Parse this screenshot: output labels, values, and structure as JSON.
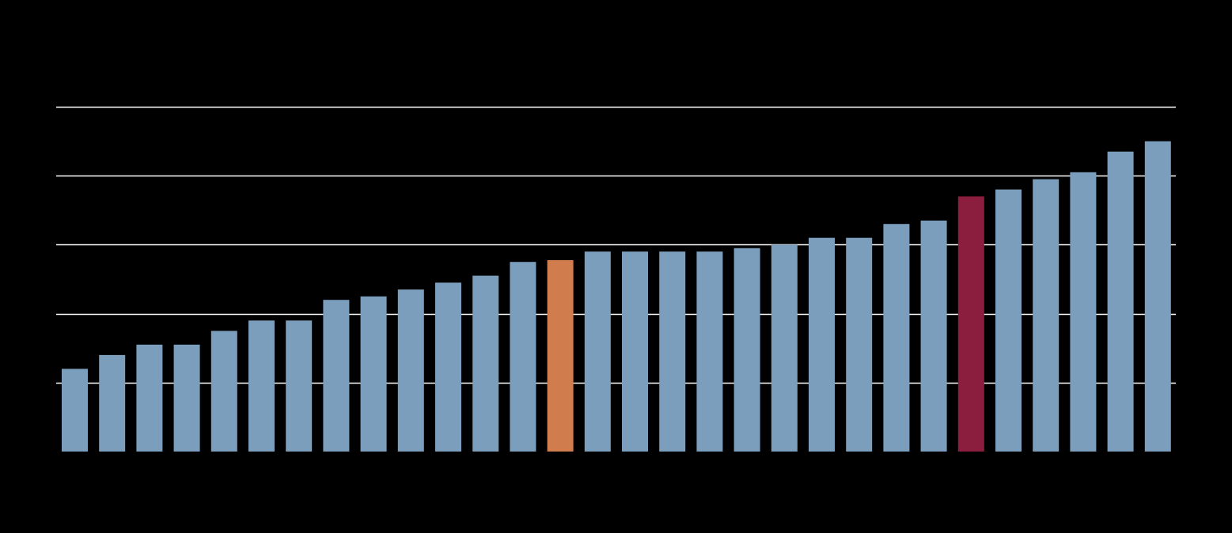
{
  "chart_data": {
    "type": "bar",
    "title": "",
    "xlabel": "",
    "ylabel": "",
    "ylim": [
      0,
      100
    ],
    "grid": true,
    "legend": "none",
    "values": [
      24,
      28,
      31,
      31,
      35,
      38,
      38,
      44,
      45,
      47,
      49,
      51,
      55,
      55.5,
      58,
      58,
      58,
      58,
      59,
      60,
      62,
      62,
      66,
      67,
      74,
      76,
      79,
      81,
      87,
      90
    ],
    "highlights": [
      {
        "index": 13,
        "color": "#d17c4c"
      },
      {
        "index": 24,
        "color": "#8b1d3e"
      }
    ],
    "colors": {
      "background": "#000000",
      "bar": "#7a9ebb",
      "grid": "#ffffff"
    }
  }
}
